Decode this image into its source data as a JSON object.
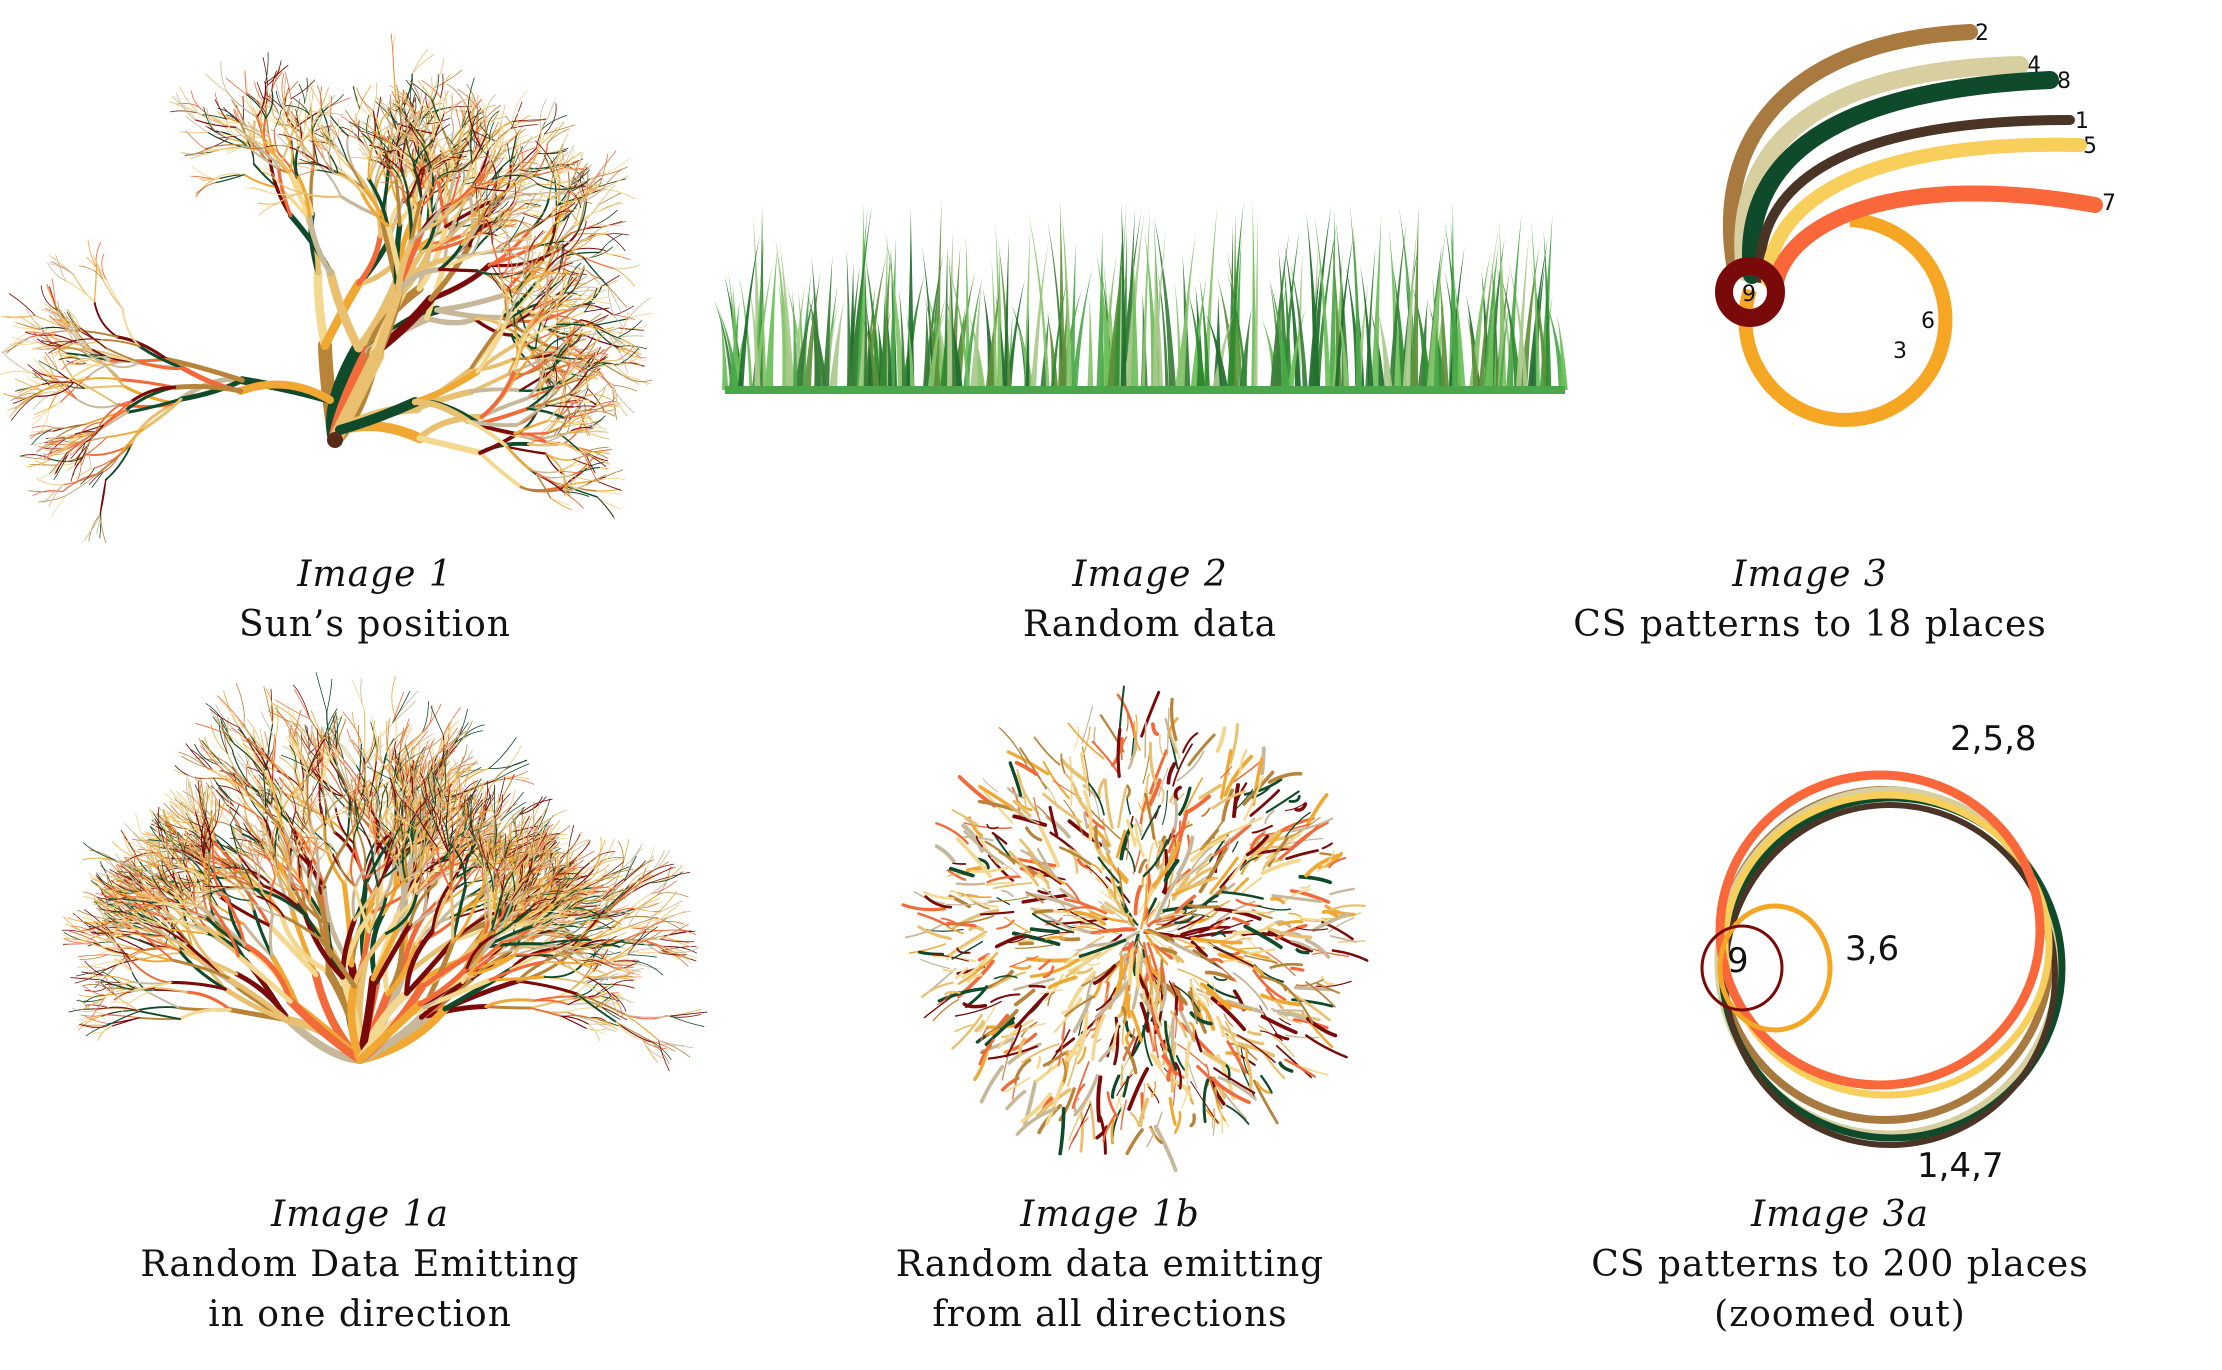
{
  "colors": {
    "palette_warm": [
      "#7a0a0a",
      "#0f4a2a",
      "#f0a832",
      "#f26a3a",
      "#e8c070",
      "#f5d890",
      "#b8843a",
      "#c8b89a"
    ],
    "palette_green": [
      "#2e8b2e",
      "#4aa84a",
      "#6bbf59",
      "#3a7d3a",
      "#86c46a",
      "#1f6e2e",
      "#5f8f3a",
      "#a9c98c"
    ],
    "spiral": {
      "1": "#4a3426",
      "2": "#a87a40",
      "3": "#f5a623",
      "4": "#d8cfa0",
      "5": "#f7cf5a",
      "6": "#f5a623",
      "7": "#f9673a",
      "8": "#0f4a2a",
      "9": "#7a0a0a"
    }
  },
  "panels": [
    {
      "id": "img1",
      "title": "Image 1",
      "desc": [
        "Sun’s position"
      ]
    },
    {
      "id": "img2",
      "title": "Image 2",
      "desc": [
        "Random data"
      ]
    },
    {
      "id": "img3",
      "title": "Image 3",
      "desc": [
        "CS patterns to 18 places"
      ],
      "labels": [
        "2",
        "4",
        "8",
        "1",
        "5",
        "7",
        "6",
        "3",
        "9"
      ]
    },
    {
      "id": "img1a",
      "title": "Image 1a",
      "desc": [
        "Random Data Emitting",
        "in one direction"
      ]
    },
    {
      "id": "img1b",
      "title": "Image 1b",
      "desc": [
        "Random data emitting",
        "from all directions"
      ]
    },
    {
      "id": "img3a",
      "title": "Image 3a",
      "desc": [
        "CS patterns to 200 places",
        "(zoomed out)"
      ],
      "labels": [
        "2,5,8",
        "3,6",
        "9",
        "1,4,7"
      ]
    }
  ]
}
